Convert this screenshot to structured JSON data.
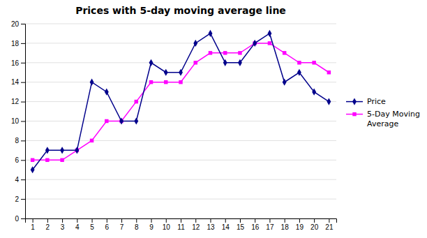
{
  "chart_data": {
    "type": "line",
    "title": "Prices with 5-day moving average line",
    "x": [
      1,
      2,
      3,
      4,
      5,
      6,
      7,
      8,
      9,
      10,
      11,
      12,
      13,
      14,
      15,
      16,
      17,
      18,
      19,
      20,
      21
    ],
    "series": [
      {
        "name": "Price",
        "color": "#00008B",
        "marker": "diamond",
        "values": [
          5,
          7,
          7,
          7,
          14,
          13,
          10,
          10,
          16,
          15,
          15,
          18,
          19,
          16,
          16,
          18,
          19,
          14,
          15,
          13,
          12
        ]
      },
      {
        "name": "5-Day Moving\nAverage",
        "color": "#FF00FF",
        "marker": "square",
        "values": [
          6,
          6,
          6,
          7,
          8,
          10,
          10,
          12,
          14,
          14,
          14,
          16,
          17,
          17,
          17,
          18,
          18,
          17,
          16,
          16,
          15
        ]
      }
    ],
    "xlim": [
      0.5,
      21.5
    ],
    "xticks": [
      1,
      2,
      3,
      4,
      5,
      6,
      7,
      8,
      9,
      10,
      11,
      12,
      13,
      14,
      15,
      16,
      17,
      18,
      19,
      20,
      21
    ],
    "ylim": [
      0,
      20
    ],
    "yticks": [
      0,
      2,
      4,
      6,
      8,
      10,
      12,
      14,
      16,
      18,
      20
    ],
    "grid": true,
    "legend": "right"
  }
}
